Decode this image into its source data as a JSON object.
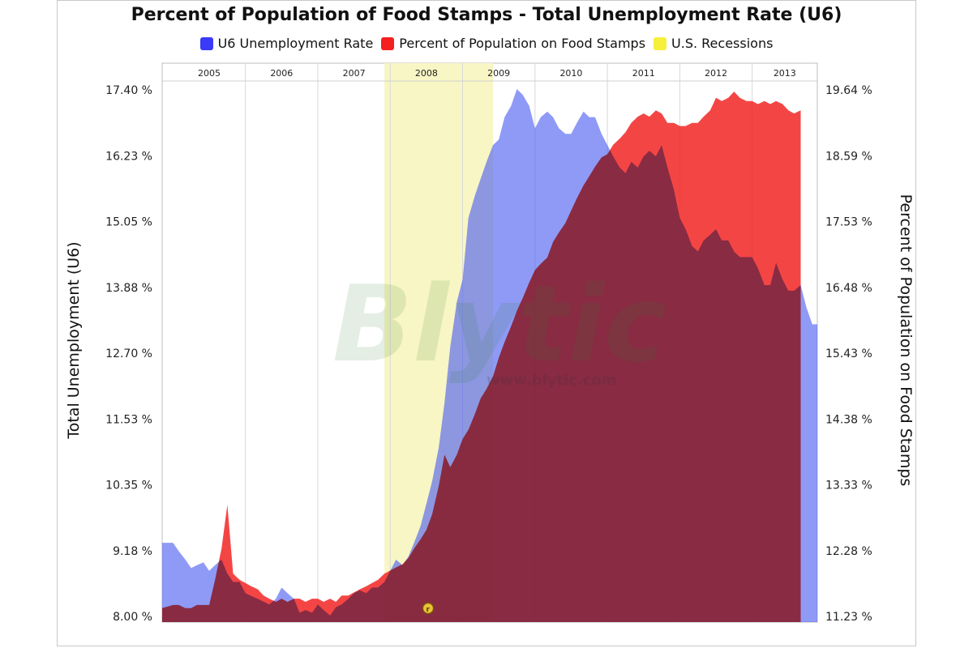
{
  "chart_data": {
    "type": "area",
    "title": "Percent of Population of Food Stamps - Total Unemployment Rate (U6)",
    "legend_position": "top-center",
    "grid": true,
    "year_labels": [
      "2005",
      "2006",
      "2007",
      "2008",
      "2009",
      "2010",
      "2011",
      "2012",
      "2013"
    ],
    "left_axis": {
      "label": "Total Unemployment (U6)",
      "ticks": [
        "8.00 %",
        "9.18 %",
        "10.35 %",
        "11.53 %",
        "12.70 %",
        "13.88 %",
        "15.05 %",
        "16.23 %",
        "17.40 %"
      ],
      "range": [
        8.0,
        17.4
      ]
    },
    "right_axis": {
      "label": "Percent of Population on Food Stamps",
      "ticks": [
        "11.23 %",
        "12.28 %",
        "13.33 %",
        "14.38 %",
        "15.43 %",
        "16.48 %",
        "17.53 %",
        "18.59 %",
        "19.64 %"
      ],
      "range": [
        11.23,
        19.64
      ]
    },
    "x_range": [
      2004.85,
      2013.9
    ],
    "recession": {
      "name": "U.S. Recessions",
      "start": 2007.92,
      "end": 2009.42,
      "color": "#f8f6c4"
    },
    "series": [
      {
        "name": "U6 Unemployment Rate",
        "axis": "left",
        "color": "#4a5cf0",
        "points": [
          [
            2004.85,
            9.3
          ],
          [
            2005.0,
            9.3
          ],
          [
            2005.08,
            9.15
          ],
          [
            2005.17,
            9.0
          ],
          [
            2005.25,
            8.85
          ],
          [
            2005.33,
            8.9
          ],
          [
            2005.42,
            8.95
          ],
          [
            2005.5,
            8.8
          ],
          [
            2005.58,
            8.9
          ],
          [
            2005.67,
            9.0
          ],
          [
            2005.75,
            8.75
          ],
          [
            2005.83,
            8.6
          ],
          [
            2005.92,
            8.6
          ],
          [
            2006.0,
            8.4
          ],
          [
            2006.08,
            8.35
          ],
          [
            2006.17,
            8.3
          ],
          [
            2006.25,
            8.25
          ],
          [
            2006.33,
            8.2
          ],
          [
            2006.42,
            8.3
          ],
          [
            2006.5,
            8.5
          ],
          [
            2006.58,
            8.4
          ],
          [
            2006.67,
            8.3
          ],
          [
            2006.75,
            8.05
          ],
          [
            2006.83,
            8.1
          ],
          [
            2006.92,
            8.05
          ],
          [
            2007.0,
            8.2
          ],
          [
            2007.08,
            8.1
          ],
          [
            2007.17,
            8.0
          ],
          [
            2007.25,
            8.15
          ],
          [
            2007.33,
            8.2
          ],
          [
            2007.42,
            8.3
          ],
          [
            2007.5,
            8.4
          ],
          [
            2007.58,
            8.45
          ],
          [
            2007.67,
            8.4
          ],
          [
            2007.75,
            8.5
          ],
          [
            2007.83,
            8.5
          ],
          [
            2007.92,
            8.6
          ],
          [
            2008.0,
            8.8
          ],
          [
            2008.08,
            9.0
          ],
          [
            2008.17,
            8.9
          ],
          [
            2008.25,
            9.05
          ],
          [
            2008.33,
            9.3
          ],
          [
            2008.42,
            9.6
          ],
          [
            2008.5,
            10.0
          ],
          [
            2008.58,
            10.4
          ],
          [
            2008.67,
            11.0
          ],
          [
            2008.75,
            11.8
          ],
          [
            2008.83,
            12.8
          ],
          [
            2008.92,
            13.6
          ],
          [
            2009.0,
            14.0
          ],
          [
            2009.08,
            15.1
          ],
          [
            2009.17,
            15.5
          ],
          [
            2009.25,
            15.8
          ],
          [
            2009.33,
            16.1
          ],
          [
            2009.42,
            16.4
          ],
          [
            2009.5,
            16.5
          ],
          [
            2009.58,
            16.9
          ],
          [
            2009.67,
            17.1
          ],
          [
            2009.75,
            17.4
          ],
          [
            2009.83,
            17.3
          ],
          [
            2009.92,
            17.1
          ],
          [
            2010.0,
            16.7
          ],
          [
            2010.08,
            16.9
          ],
          [
            2010.17,
            17.0
          ],
          [
            2010.25,
            16.9
          ],
          [
            2010.33,
            16.7
          ],
          [
            2010.42,
            16.6
          ],
          [
            2010.5,
            16.6
          ],
          [
            2010.58,
            16.8
          ],
          [
            2010.67,
            17.0
          ],
          [
            2010.75,
            16.9
          ],
          [
            2010.83,
            16.9
          ],
          [
            2010.92,
            16.6
          ],
          [
            2011.0,
            16.4
          ],
          [
            2011.08,
            16.2
          ],
          [
            2011.17,
            16.0
          ],
          [
            2011.25,
            15.9
          ],
          [
            2011.33,
            16.1
          ],
          [
            2011.42,
            16.0
          ],
          [
            2011.5,
            16.2
          ],
          [
            2011.58,
            16.3
          ],
          [
            2011.67,
            16.2
          ],
          [
            2011.75,
            16.4
          ],
          [
            2011.83,
            16.0
          ],
          [
            2011.92,
            15.6
          ],
          [
            2012.0,
            15.1
          ],
          [
            2012.08,
            14.9
          ],
          [
            2012.17,
            14.6
          ],
          [
            2012.25,
            14.5
          ],
          [
            2012.33,
            14.7
          ],
          [
            2012.42,
            14.8
          ],
          [
            2012.5,
            14.9
          ],
          [
            2012.58,
            14.7
          ],
          [
            2012.67,
            14.7
          ],
          [
            2012.75,
            14.5
          ],
          [
            2012.83,
            14.4
          ],
          [
            2012.92,
            14.4
          ],
          [
            2013.0,
            14.4
          ],
          [
            2013.08,
            14.2
          ],
          [
            2013.17,
            13.9
          ],
          [
            2013.25,
            13.9
          ],
          [
            2013.33,
            14.3
          ],
          [
            2013.42,
            14.0
          ],
          [
            2013.5,
            13.8
          ],
          [
            2013.58,
            13.8
          ],
          [
            2013.67,
            13.9
          ],
          [
            2013.75,
            13.5
          ],
          [
            2013.83,
            13.2
          ],
          [
            2013.9,
            13.2
          ]
        ]
      },
      {
        "name": "Percent of Population on Food Stamps",
        "axis": "right",
        "color": "#f22424",
        "points": [
          [
            2004.85,
            11.35
          ],
          [
            2005.0,
            11.4
          ],
          [
            2005.08,
            11.4
          ],
          [
            2005.17,
            11.35
          ],
          [
            2005.25,
            11.35
          ],
          [
            2005.33,
            11.4
          ],
          [
            2005.42,
            11.4
          ],
          [
            2005.5,
            11.4
          ],
          [
            2005.58,
            11.8
          ],
          [
            2005.67,
            12.3
          ],
          [
            2005.75,
            13.0
          ],
          [
            2005.83,
            11.9
          ],
          [
            2005.92,
            11.8
          ],
          [
            2006.0,
            11.75
          ],
          [
            2006.08,
            11.7
          ],
          [
            2006.17,
            11.65
          ],
          [
            2006.25,
            11.55
          ],
          [
            2006.33,
            11.5
          ],
          [
            2006.42,
            11.45
          ],
          [
            2006.5,
            11.5
          ],
          [
            2006.58,
            11.45
          ],
          [
            2006.67,
            11.5
          ],
          [
            2006.75,
            11.5
          ],
          [
            2006.83,
            11.45
          ],
          [
            2006.92,
            11.5
          ],
          [
            2007.0,
            11.5
          ],
          [
            2007.08,
            11.45
          ],
          [
            2007.17,
            11.5
          ],
          [
            2007.25,
            11.45
          ],
          [
            2007.33,
            11.55
          ],
          [
            2007.42,
            11.55
          ],
          [
            2007.5,
            11.6
          ],
          [
            2007.58,
            11.65
          ],
          [
            2007.67,
            11.7
          ],
          [
            2007.75,
            11.75
          ],
          [
            2007.83,
            11.8
          ],
          [
            2007.92,
            11.9
          ],
          [
            2008.0,
            11.95
          ],
          [
            2008.08,
            12.0
          ],
          [
            2008.17,
            12.05
          ],
          [
            2008.25,
            12.15
          ],
          [
            2008.33,
            12.3
          ],
          [
            2008.42,
            12.45
          ],
          [
            2008.5,
            12.6
          ],
          [
            2008.58,
            12.85
          ],
          [
            2008.67,
            13.3
          ],
          [
            2008.75,
            13.8
          ],
          [
            2008.83,
            13.6
          ],
          [
            2008.92,
            13.8
          ],
          [
            2009.0,
            14.05
          ],
          [
            2009.08,
            14.2
          ],
          [
            2009.17,
            14.45
          ],
          [
            2009.25,
            14.7
          ],
          [
            2009.33,
            14.85
          ],
          [
            2009.42,
            15.05
          ],
          [
            2009.5,
            15.35
          ],
          [
            2009.58,
            15.6
          ],
          [
            2009.67,
            15.85
          ],
          [
            2009.75,
            16.1
          ],
          [
            2009.83,
            16.3
          ],
          [
            2009.92,
            16.55
          ],
          [
            2010.0,
            16.75
          ],
          [
            2010.08,
            16.85
          ],
          [
            2010.17,
            16.95
          ],
          [
            2010.25,
            17.2
          ],
          [
            2010.33,
            17.35
          ],
          [
            2010.42,
            17.5
          ],
          [
            2010.5,
            17.7
          ],
          [
            2010.58,
            17.9
          ],
          [
            2010.67,
            18.1
          ],
          [
            2010.75,
            18.25
          ],
          [
            2010.83,
            18.4
          ],
          [
            2010.92,
            18.55
          ],
          [
            2011.0,
            18.6
          ],
          [
            2011.08,
            18.75
          ],
          [
            2011.17,
            18.85
          ],
          [
            2011.25,
            18.95
          ],
          [
            2011.33,
            19.1
          ],
          [
            2011.42,
            19.2
          ],
          [
            2011.5,
            19.25
          ],
          [
            2011.58,
            19.2
          ],
          [
            2011.67,
            19.3
          ],
          [
            2011.75,
            19.25
          ],
          [
            2011.83,
            19.1
          ],
          [
            2011.92,
            19.1
          ],
          [
            2012.0,
            19.05
          ],
          [
            2012.08,
            19.05
          ],
          [
            2012.17,
            19.1
          ],
          [
            2012.25,
            19.1
          ],
          [
            2012.33,
            19.2
          ],
          [
            2012.42,
            19.3
          ],
          [
            2012.5,
            19.5
          ],
          [
            2012.58,
            19.45
          ],
          [
            2012.67,
            19.5
          ],
          [
            2012.75,
            19.6
          ],
          [
            2012.83,
            19.5
          ],
          [
            2012.92,
            19.45
          ],
          [
            2013.0,
            19.45
          ],
          [
            2013.08,
            19.4
          ],
          [
            2013.17,
            19.45
          ],
          [
            2013.25,
            19.4
          ],
          [
            2013.33,
            19.45
          ],
          [
            2013.42,
            19.4
          ],
          [
            2013.5,
            19.3
          ],
          [
            2013.58,
            19.25
          ],
          [
            2013.67,
            19.3
          ]
        ]
      },
      {
        "name": "U.S. Recessions",
        "color": "#ffef4a"
      }
    ]
  },
  "watermark": {
    "logo_text": "Blytic",
    "url": "www.blytic.com"
  }
}
